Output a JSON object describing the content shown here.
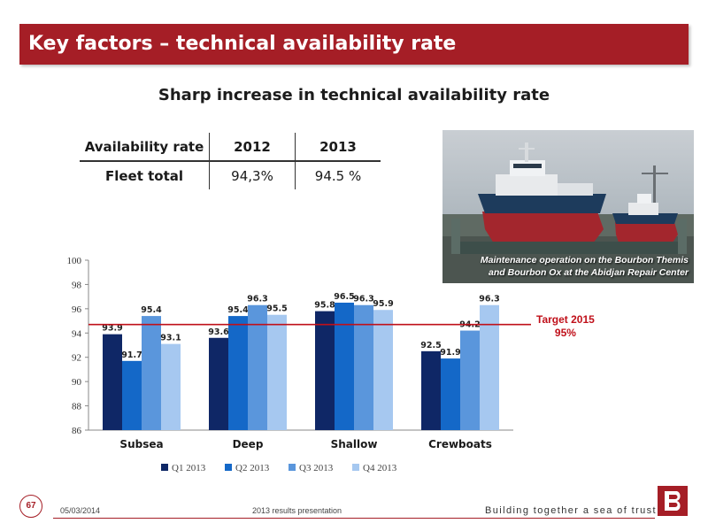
{
  "header": {
    "title": "Key factors – technical availability rate"
  },
  "subtitle": "Sharp increase in technical availability rate",
  "availability_table": {
    "headers": [
      "Availability rate",
      "2012",
      "2013"
    ],
    "row": {
      "label": "Fleet total",
      "v2012": "94,3%",
      "v2013": "94.5 %"
    }
  },
  "photo": {
    "caption_line1": "Maintenance operation on the Bourbon Themis",
    "caption_line2": "and Bourbon Ox at the Abidjan Repair Center"
  },
  "target": {
    "line1": "Target 2015",
    "line2": "95%",
    "value": 94.7
  },
  "chart_data": {
    "type": "bar",
    "categories": [
      "Subsea",
      "Deep",
      "Shallow",
      "Crewboats"
    ],
    "series": [
      {
        "name": "Q1 2013",
        "color": "#0f2766",
        "values": [
          93.9,
          93.6,
          95.8,
          92.5
        ]
      },
      {
        "name": "Q2 2013",
        "color": "#1468c8",
        "values": [
          91.7,
          95.4,
          96.5,
          91.9
        ]
      },
      {
        "name": "Q3 2013",
        "color": "#5a96dc",
        "values": [
          95.4,
          96.3,
          96.3,
          94.2
        ]
      },
      {
        "name": "Q4 2013",
        "color": "#a6c8f0",
        "values": [
          93.1,
          95.5,
          95.9,
          96.3
        ]
      }
    ],
    "ylim": [
      86,
      100
    ],
    "yticks": [
      86,
      88,
      90,
      92,
      94,
      96,
      98,
      100
    ],
    "legend": "bottom",
    "grid": false
  },
  "footer": {
    "page": "67",
    "date": "05/03/2014",
    "presentation": "2013 results presentation",
    "slogan": "Building together a sea of trust"
  }
}
